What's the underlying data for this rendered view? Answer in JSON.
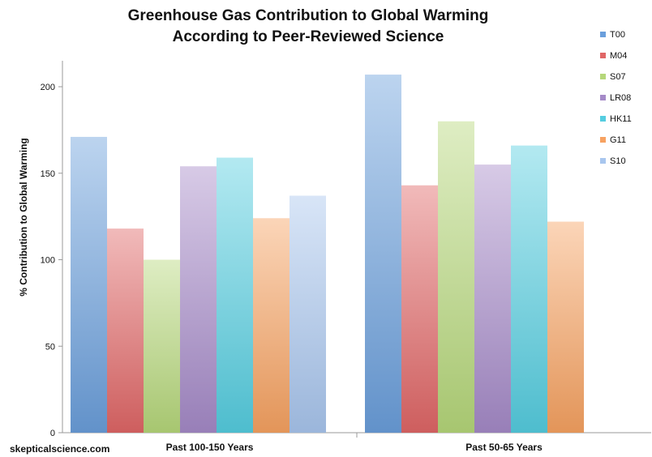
{
  "chart_data": {
    "type": "bar",
    "title_lines": [
      "Greenhouse Gas Contribution to Global Warming",
      "According to Peer-Reviewed Science"
    ],
    "xlabel": "",
    "ylabel": "% Contribution to Global Warming",
    "ylim": [
      0,
      215
    ],
    "yticks": [
      0,
      50,
      100,
      150,
      200
    ],
    "grid": false,
    "legend_position": "top-right",
    "categories": [
      "Past 100-150 Years",
      "Past 50-65 Years"
    ],
    "series": [
      {
        "name": "T00",
        "color": "#6a9fdc",
        "values": [
          171,
          207
        ]
      },
      {
        "name": "M04",
        "color": "#e06666",
        "values": [
          118,
          143
        ]
      },
      {
        "name": "S07",
        "color": "#b5d77a",
        "values": [
          100,
          180
        ]
      },
      {
        "name": "LR08",
        "color": "#a58ac8",
        "values": [
          154,
          155
        ]
      },
      {
        "name": "HK11",
        "color": "#55cde0",
        "values": [
          159,
          166
        ]
      },
      {
        "name": "G11",
        "color": "#f7a261",
        "values": [
          124,
          122
        ]
      },
      {
        "name": "S10",
        "color": "#a8c6ee",
        "values": [
          137,
          null
        ]
      }
    ]
  },
  "source_label": "skepticalscience.com"
}
